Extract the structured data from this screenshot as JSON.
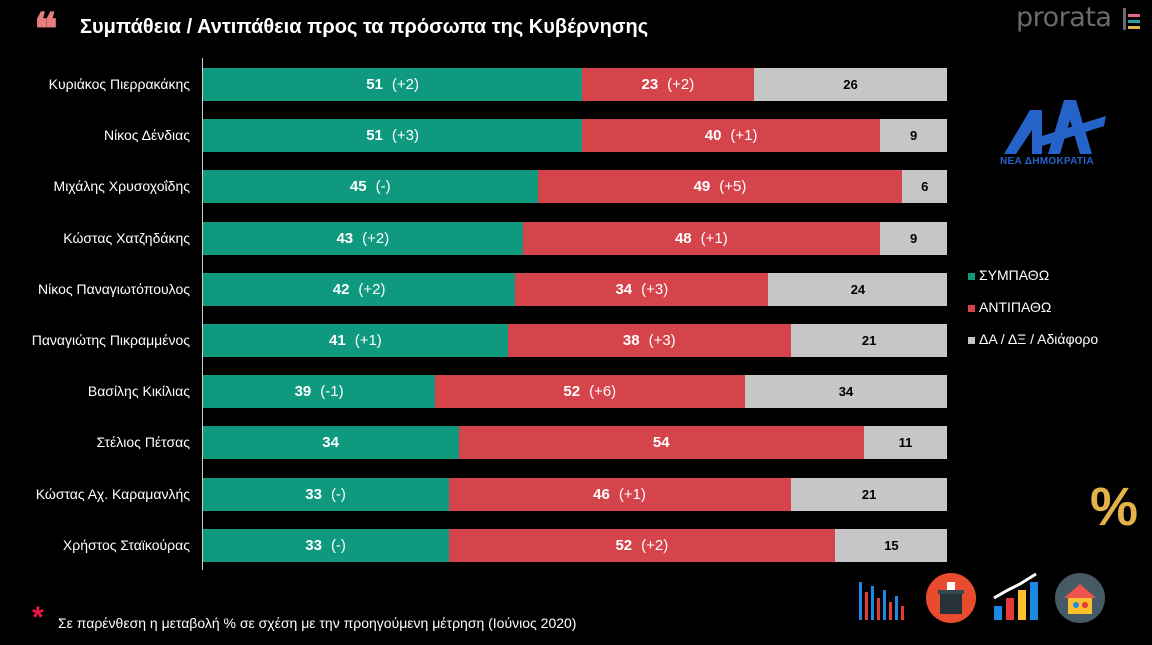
{
  "header": {
    "title": "Συμπάθεια / Αντιπάθεια προς τα πρόσωπα της Κυβέρνησης",
    "brand": "prorata"
  },
  "logo": {
    "party_name": "ΝΕΑ ΔΗΜΟΚΡΑΤΙΑ",
    "color": "#2563c9"
  },
  "legend": {
    "items": [
      {
        "label": "ΣΥΜΠΑΘΩ",
        "color": "#0f9a80"
      },
      {
        "label": "ΑΝΤΙΠΑΘΩ",
        "color": "#d5444a"
      },
      {
        "label": "ΔΑ / ΔΞ / Αδιάφορο",
        "color": "#c6c6c6"
      }
    ]
  },
  "footnote": {
    "text": "Σε παρένθεση η μεταβολή % σε σχέση με την προηγούμενη μέτρηση (Ιούνιος 2020)"
  },
  "decor": {
    "percent_symbol": "%"
  },
  "chart_data": {
    "type": "bar",
    "orientation": "horizontal",
    "stacked": true,
    "title": "Συμπάθεια / Αντιπάθεια προς τα πρόσωπα της Κυβέρνησης",
    "categories": [
      "Κυριάκος Πιερρακάκης",
      "Νίκος Δένδιας",
      "Μιχάλης Χρυσοχοΐδης",
      "Κώστας Χατζηδάκης",
      "Νίκος Παναγιωτόπουλος",
      "Παναγιώτης Πικραμμένος",
      "Βασίλης Κικίλιας",
      "Στέλιος Πέτσας",
      "Κώστας Αχ. Καραμανλής",
      "Χρήστος Σταϊκούρας"
    ],
    "series": [
      {
        "name": "ΣΥΜΠΑΘΩ",
        "color": "#0f9a80",
        "values": [
          51,
          51,
          45,
          43,
          42,
          41,
          39,
          34,
          33,
          33
        ],
        "changes": [
          "(+2)",
          "(+3)",
          "(-)",
          "(+2)",
          "(+2)",
          "(+1)",
          "(-1)",
          "",
          "(-)",
          "(-)"
        ]
      },
      {
        "name": "ΑΝΤΙΠΑΘΩ",
        "color": "#d5444a",
        "values": [
          23,
          40,
          49,
          48,
          34,
          38,
          52,
          54,
          46,
          52
        ],
        "changes": [
          "(+2)",
          "(+1)",
          "(+5)",
          "(+1)",
          "(+3)",
          "(+3)",
          "(+6)",
          "",
          "(+1)",
          "(+2)"
        ]
      },
      {
        "name": "ΔΑ / ΔΞ / Αδιάφορο",
        "color": "#c6c6c6",
        "values": [
          26,
          9,
          6,
          9,
          24,
          21,
          34,
          11,
          21,
          15
        ],
        "changes": [
          "",
          "",
          "",
          "",
          "",
          "",
          "",
          "",
          "",
          ""
        ]
      }
    ],
    "legend_position": "right",
    "grid": false
  }
}
